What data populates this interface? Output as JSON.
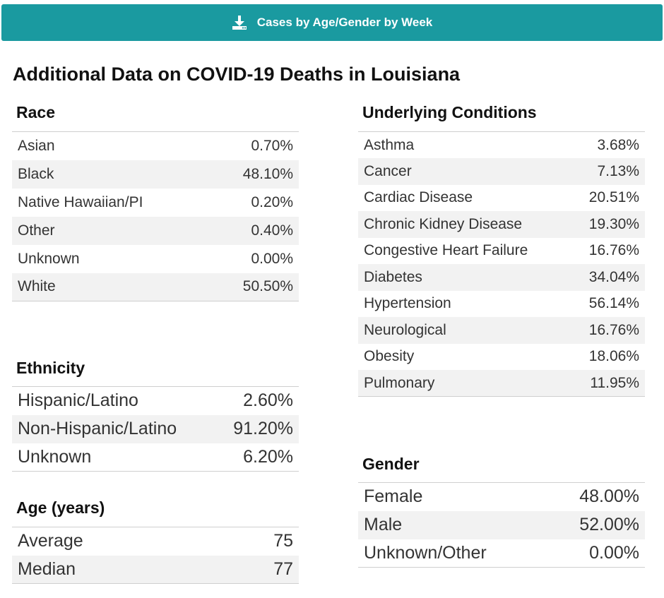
{
  "download_button": {
    "label": "Cases by Age/Gender by Week",
    "icon": "download-icon",
    "color": "#1a9aa0"
  },
  "title": "Additional Data on COVID-19 Deaths in Louisiana",
  "race": {
    "title": "Race",
    "rows": [
      {
        "label": "Asian",
        "value": "0.70%"
      },
      {
        "label": "Black",
        "value": "48.10%"
      },
      {
        "label": "Native Hawaiian/PI",
        "value": "0.20%"
      },
      {
        "label": "Other",
        "value": "0.40%"
      },
      {
        "label": "Unknown",
        "value": "0.00%"
      },
      {
        "label": "White",
        "value": "50.50%"
      }
    ]
  },
  "ethnicity": {
    "title": "Ethnicity",
    "rows": [
      {
        "label": "Hispanic/Latino",
        "value": "2.60%"
      },
      {
        "label": "Non-Hispanic/Latino",
        "value": "91.20%"
      },
      {
        "label": "Unknown",
        "value": "6.20%"
      }
    ]
  },
  "age": {
    "title": "Age (years)",
    "rows": [
      {
        "label": "Average",
        "value": "75"
      },
      {
        "label": "Median",
        "value": "77"
      }
    ]
  },
  "underlying_conditions": {
    "title": "Underlying Conditions",
    "rows": [
      {
        "label": "Asthma",
        "value": "3.68%"
      },
      {
        "label": "Cancer",
        "value": "7.13%"
      },
      {
        "label": "Cardiac Disease",
        "value": "20.51%"
      },
      {
        "label": "Chronic Kidney Disease",
        "value": "19.30%"
      },
      {
        "label": "Congestive Heart Failure",
        "value": "16.76%"
      },
      {
        "label": "Diabetes",
        "value": "34.04%"
      },
      {
        "label": "Hypertension",
        "value": "56.14%"
      },
      {
        "label": "Neurological",
        "value": "16.76%"
      },
      {
        "label": "Obesity",
        "value": "18.06%"
      },
      {
        "label": "Pulmonary",
        "value": "11.95%"
      }
    ]
  },
  "gender": {
    "title": "Gender",
    "rows": [
      {
        "label": "Female",
        "value": "48.00%"
      },
      {
        "label": "Male",
        "value": "52.00%"
      },
      {
        "label": "Unknown/Other",
        "value": "0.00%"
      }
    ]
  }
}
